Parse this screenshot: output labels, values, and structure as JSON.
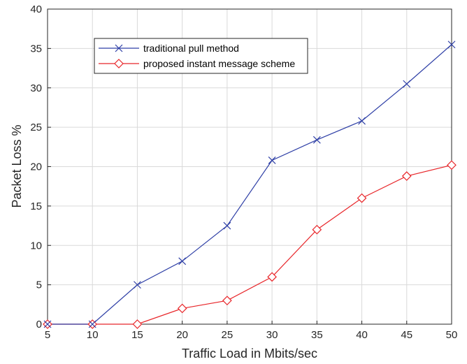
{
  "chart_data": {
    "type": "line",
    "title": "",
    "xlabel": "Traffic Load in Mbits/sec",
    "ylabel": "Packet Loss %",
    "x": [
      5,
      10,
      15,
      20,
      25,
      30,
      35,
      40,
      45,
      50
    ],
    "xlim": [
      5,
      50
    ],
    "ylim": [
      0,
      40
    ],
    "xticks": [
      5,
      10,
      15,
      20,
      25,
      30,
      35,
      40,
      45,
      50
    ],
    "yticks": [
      0,
      5,
      10,
      15,
      20,
      25,
      30,
      35,
      40
    ],
    "grid": true,
    "legend_position": "top-left",
    "series": [
      {
        "name": "traditional pull method",
        "color": "#2e3fa6",
        "marker": "x",
        "values": [
          0,
          0,
          5,
          8,
          12.5,
          20.8,
          23.4,
          25.8,
          30.5,
          35.5
        ]
      },
      {
        "name": "proposed instant message scheme",
        "color": "#e8262a",
        "marker": "diamond",
        "values": [
          0,
          0,
          0,
          2,
          3,
          6,
          12,
          16,
          18.8,
          20.2
        ]
      }
    ]
  }
}
